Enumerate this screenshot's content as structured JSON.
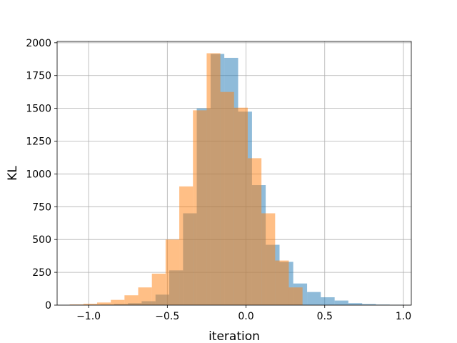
{
  "chart_data": {
    "type": "bar",
    "title": "",
    "xlabel": "iteration",
    "ylabel": "KL",
    "xlim": [
      -1.2,
      1.05
    ],
    "ylim": [
      0,
      2010
    ],
    "grid": true,
    "legend": "none",
    "xticks": [
      -1.0,
      -0.5,
      0.0,
      0.5,
      1.0
    ],
    "xtick_labels": [
      "−1.0",
      "−0.5",
      "0.0",
      "0.5",
      "1.0"
    ],
    "yticks": [
      0,
      250,
      500,
      750,
      1000,
      1250,
      1500,
      1750,
      2000
    ],
    "ytick_labels": [
      "0",
      "250",
      "500",
      "750",
      "1000",
      "1250",
      "1500",
      "1750",
      "2000"
    ],
    "series": [
      {
        "color": "#1f77b4",
        "opacity": 0.5,
        "bin_edges": [
          -1.1,
          -1.013,
          -0.925,
          -0.838,
          -0.75,
          -0.663,
          -0.575,
          -0.488,
          -0.4,
          -0.313,
          -0.225,
          -0.138,
          -0.05,
          0.038,
          0.125,
          0.213,
          0.3,
          0.388,
          0.475,
          0.563,
          0.65,
          0.738,
          0.825,
          0.913,
          1.0
        ],
        "counts": [
          2,
          2,
          4,
          8,
          15,
          30,
          80,
          265,
          700,
          1500,
          1915,
          1885,
          1475,
          915,
          460,
          330,
          165,
          100,
          60,
          35,
          15,
          8,
          4,
          2
        ]
      },
      {
        "color": "#ff7f0e",
        "opacity": 0.5,
        "bin_edges": [
          -1.12,
          -1.033,
          -0.946,
          -0.859,
          -0.772,
          -0.685,
          -0.598,
          -0.511,
          -0.424,
          -0.337,
          -0.25,
          -0.163,
          -0.076,
          0.011,
          0.098,
          0.185,
          0.272,
          0.359
        ],
        "counts": [
          5,
          10,
          20,
          40,
          75,
          135,
          240,
          500,
          905,
          1485,
          1920,
          1625,
          1505,
          1120,
          700,
          340,
          135
        ]
      }
    ]
  }
}
